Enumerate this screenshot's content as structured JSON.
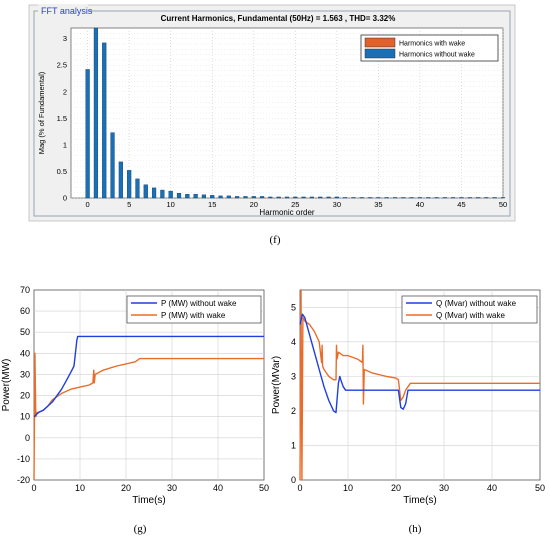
{
  "captions": {
    "f": "(f)",
    "g": "(g)",
    "h": "(h)"
  },
  "colors": {
    "with_wake_bar": "#e2602a",
    "without_wake_bar": "#1a6fb5",
    "with_wake_line": "#e86d2b",
    "without_wake_line": "#1f3ee0",
    "panel_bg": "#f0f0f0",
    "panel_border": "#9aa4b5",
    "panel_title": "#2a3fc7",
    "grid": "#d0d0d0"
  },
  "chart_data": [
    {
      "type": "bar",
      "panel_label": "FFT analysis",
      "title": "Current Harmonics, Fundamental (50Hz) = 1.563 , THD= 3.32%",
      "xlabel": "Harmonic order",
      "ylabel": "Mag (% of Fundamental)",
      "xlim": [
        -2,
        50
      ],
      "ylim": [
        0,
        3.2
      ],
      "xticks": [
        0,
        5,
        10,
        15,
        20,
        25,
        30,
        35,
        40,
        45,
        50
      ],
      "yticks": [
        0,
        0.5,
        1,
        1.5,
        2,
        2.5,
        3
      ],
      "ytick_labels": [
        "0",
        "0.5",
        "1",
        "1.5",
        "2",
        "2.5",
        "3"
      ],
      "grid": true,
      "legend_position": "top-right",
      "series": [
        {
          "name": "Harmonics with wake",
          "color_key": "with_wake_bar",
          "values": []
        },
        {
          "name": "Harmonics without wake",
          "color_key": "without_wake_bar",
          "x": [
            0,
            1,
            2,
            3,
            4,
            5,
            6,
            7,
            8,
            9,
            10,
            11,
            12,
            13,
            14,
            15,
            16,
            17,
            18,
            19,
            20,
            21,
            22,
            23,
            24,
            25,
            26,
            27,
            28,
            29,
            30,
            31,
            32,
            33,
            34,
            35,
            36,
            37,
            38,
            39,
            40,
            41,
            42,
            43,
            44,
            45,
            46,
            47,
            48,
            49,
            50
          ],
          "values": [
            2.42,
            3.2,
            2.92,
            1.23,
            0.68,
            0.52,
            0.36,
            0.25,
            0.19,
            0.15,
            0.13,
            0.09,
            0.07,
            0.07,
            0.06,
            0.05,
            0.04,
            0.04,
            0.03,
            0.03,
            0.03,
            0.03,
            0.02,
            0.02,
            0.02,
            0.02,
            0.02,
            0.02,
            0.02,
            0.02,
            0.02,
            0.01,
            0.01,
            0.01,
            0.01,
            0.01,
            0.01,
            0.01,
            0.01,
            0.01,
            0.01,
            0.01,
            0.01,
            0.01,
            0.01,
            0.01,
            0.01,
            0.01,
            0.01,
            0.01,
            0.01
          ]
        }
      ]
    },
    {
      "type": "line",
      "xlabel": "Time(s)",
      "ylabel": "Power(MW)",
      "xlim": [
        0,
        50
      ],
      "ylim": [
        -20,
        70
      ],
      "xticks": [
        0,
        10,
        20,
        30,
        40,
        50
      ],
      "yticks": [
        -20,
        -10,
        0,
        10,
        20,
        30,
        40,
        50,
        60,
        70
      ],
      "grid": true,
      "legend_position": "top-right",
      "series": [
        {
          "name": "P (MW) without wake",
          "color_key": "without_wake_line",
          "x": [
            0,
            0.5,
            1,
            2,
            3,
            4,
            5,
            6,
            7,
            8,
            8.7,
            9.3,
            9.5,
            10,
            20,
            30,
            40,
            50
          ],
          "y": [
            10,
            11,
            12,
            13,
            15,
            17,
            20,
            23,
            27,
            31,
            34,
            46,
            48,
            48,
            48,
            48,
            48,
            48
          ]
        },
        {
          "name": "P (MW) with wake",
          "color_key": "with_wake_line",
          "x": [
            0,
            0.2,
            0.4,
            0.7,
            1,
            2,
            3,
            4,
            6,
            8,
            10,
            12,
            12.8,
            13,
            13.1,
            13.3,
            15,
            18,
            20,
            22,
            23,
            25,
            30,
            40,
            50
          ],
          "y": [
            -20,
            40,
            10,
            12,
            12,
            13,
            15,
            18,
            21,
            23,
            24,
            25,
            26,
            32,
            26,
            30,
            32,
            34,
            35,
            36,
            37.5,
            37.5,
            37.5,
            37.5,
            37.5
          ]
        }
      ]
    },
    {
      "type": "line",
      "xlabel": "Time(s)",
      "ylabel": "Power(MVar)",
      "xlim": [
        0,
        50
      ],
      "ylim": [
        0,
        5.5
      ],
      "xticks": [
        0,
        10,
        20,
        30,
        40,
        50
      ],
      "yticks": [
        0,
        1,
        2,
        3,
        4,
        5
      ],
      "grid": true,
      "legend_position": "top-right",
      "series": [
        {
          "name": "Q (Mvar) without wake",
          "color_key": "without_wake_line",
          "x": [
            0,
            0.5,
            1,
            2,
            3,
            4,
            5,
            6,
            7,
            7.5,
            8,
            8.3,
            8.5,
            9,
            9.5,
            10,
            15,
            20,
            20.5,
            21,
            21.5,
            22,
            22.5,
            23,
            30,
            40,
            50
          ],
          "y": [
            4.5,
            4.8,
            4.7,
            4.2,
            3.7,
            3.2,
            2.7,
            2.3,
            2.0,
            1.95,
            2.8,
            3.0,
            2.9,
            2.7,
            2.6,
            2.6,
            2.6,
            2.6,
            2.6,
            2.1,
            2.05,
            2.2,
            2.6,
            2.6,
            2.6,
            2.6,
            2.6
          ]
        },
        {
          "name": "Q (Mvar) with wake",
          "color_key": "with_wake_line",
          "x": [
            0,
            0.2,
            0.4,
            0.6,
            1,
            2,
            3,
            4,
            4.5,
            4.6,
            4.7,
            5,
            6,
            7,
            7.5,
            7.6,
            7.7,
            8,
            9,
            10,
            12,
            13,
            13.1,
            13.2,
            13.4,
            15,
            18,
            20,
            20.5,
            21,
            21.5,
            22,
            23,
            30,
            40,
            50
          ],
          "y": [
            0,
            5.5,
            0,
            4.7,
            4.6,
            4.5,
            4.3,
            4.0,
            3.4,
            3.9,
            3.3,
            3.2,
            3.0,
            2.9,
            2.9,
            3.9,
            3.5,
            3.7,
            3.6,
            3.6,
            3.5,
            3.4,
            3.9,
            2.2,
            3.2,
            3.1,
            3.0,
            2.95,
            2.9,
            2.3,
            2.4,
            2.6,
            2.8,
            2.8,
            2.8,
            2.8
          ]
        }
      ]
    }
  ]
}
